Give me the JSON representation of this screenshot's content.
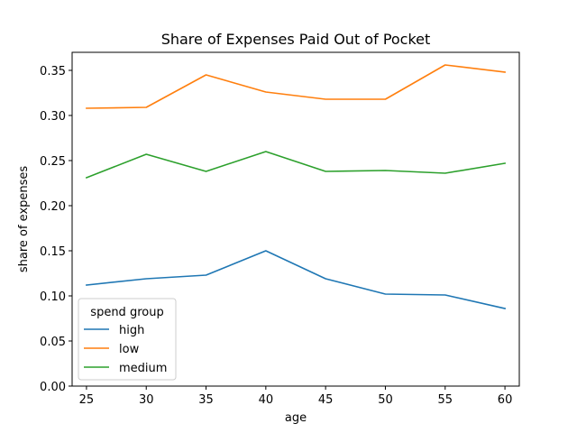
{
  "chart_data": {
    "type": "line",
    "title": "Share of Expenses Paid Out of Pocket",
    "xlabel": "age",
    "ylabel": "share of expenses",
    "x": [
      25,
      30,
      35,
      40,
      45,
      50,
      55,
      60
    ],
    "x_ticks": [
      "25",
      "30",
      "35",
      "40",
      "45",
      "50",
      "55",
      "60"
    ],
    "y_ticks": [
      "0.00",
      "0.05",
      "0.10",
      "0.15",
      "0.20",
      "0.25",
      "0.30",
      "0.35"
    ],
    "ylim": [
      0,
      0.37
    ],
    "xlim": [
      23.8,
      61.2
    ],
    "grid": false,
    "legend": {
      "title": "spend group",
      "position": "lower-left"
    },
    "series": [
      {
        "name": "high",
        "color": "#1f77b4",
        "values": [
          0.112,
          0.119,
          0.123,
          0.15,
          0.119,
          0.102,
          0.101,
          0.086
        ]
      },
      {
        "name": "low",
        "color": "#ff7f0e",
        "values": [
          0.308,
          0.309,
          0.345,
          0.326,
          0.318,
          0.318,
          0.356,
          0.348
        ]
      },
      {
        "name": "medium",
        "color": "#2ca02c",
        "values": [
          0.231,
          0.257,
          0.238,
          0.26,
          0.238,
          0.239,
          0.236,
          0.247
        ]
      }
    ]
  }
}
